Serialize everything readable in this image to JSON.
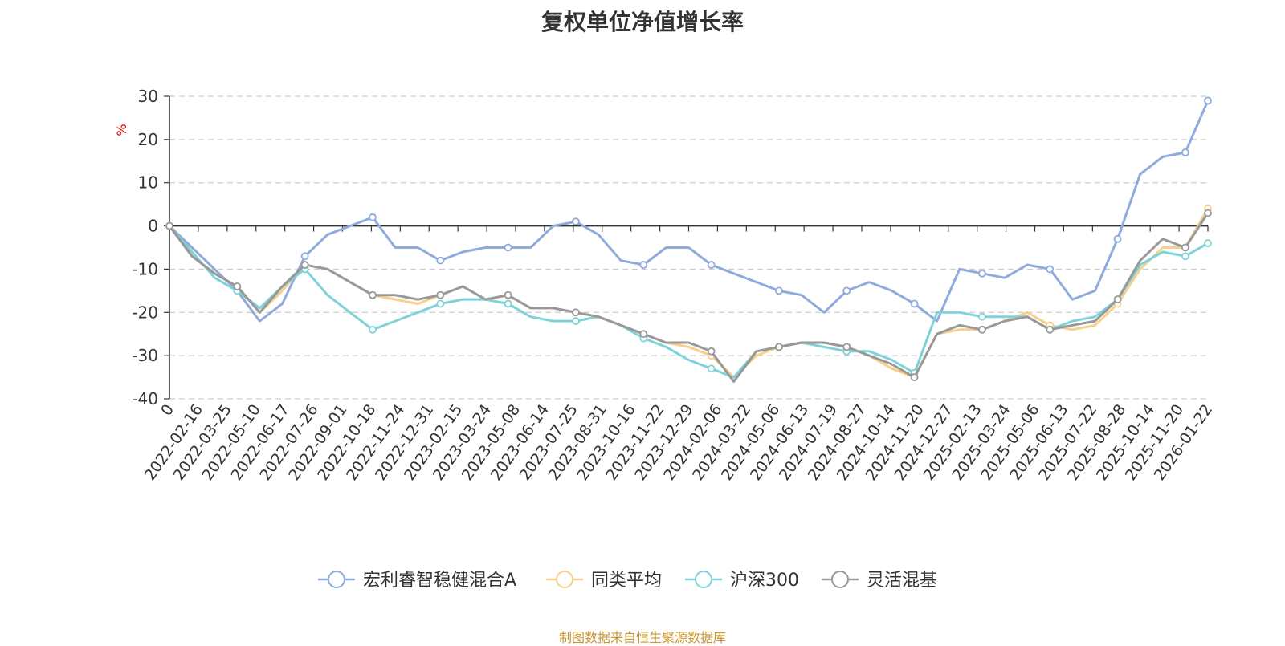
{
  "chart_data": {
    "type": "line",
    "title": "复权单位净值增长率",
    "ylabel": "%",
    "ylim": [
      -40,
      30
    ],
    "yticks": [
      30,
      20,
      10,
      0,
      -10,
      -20,
      -30,
      -40
    ],
    "grid": true,
    "legend_position": "bottom",
    "x_tick_labels": [
      "0",
      "2022-02-16",
      "2022-03-25",
      "2022-05-10",
      "2022-06-17",
      "2022-07-26",
      "2022-09-01",
      "2022-10-18",
      "2022-11-24",
      "2022-12-31",
      "2023-02-15",
      "2023-03-24",
      "2023-05-08",
      "2023-06-14",
      "2023-07-25",
      "2023-08-31",
      "2023-10-16",
      "2023-11-22",
      "2023-12-29",
      "2024-02-06",
      "2024-03-22",
      "2024-05-06",
      "2024-06-13",
      "2024-07-19",
      "2024-08-27",
      "2024-10-14",
      "2024-11-20",
      "2024-12-27",
      "2025-02-13",
      "2025-03-24",
      "2025-05-06",
      "2025-06-13",
      "2025-07-22",
      "2025-08-28",
      "2025-10-14",
      "2025-11-20",
      "2026-01-22"
    ],
    "series": [
      {
        "name": "宏利睿智稳健混合A",
        "color": "#8faadc",
        "values": [
          0,
          -5,
          -10,
          -15,
          -22,
          -18,
          -7,
          -2,
          0,
          2,
          -5,
          -5,
          -8,
          -6,
          -5,
          -5,
          -5,
          0,
          1,
          -2,
          -8,
          -9,
          -5,
          -5,
          -9,
          -11,
          -13,
          -15,
          -16,
          -20,
          -15,
          -13,
          -15,
          -18,
          -22,
          -10,
          -11,
          -12,
          -9,
          -10,
          -17,
          -15,
          -3,
          12,
          16,
          17,
          29
        ]
      },
      {
        "name": "同类平均",
        "color": "#f9d08b",
        "values": [
          0,
          -7,
          -11,
          -14,
          -20,
          -15,
          -9,
          -10,
          -13,
          -16,
          -17,
          -18,
          -16,
          -14,
          -17,
          -16,
          -19,
          -19,
          -20,
          -21,
          -23,
          -25,
          -27,
          -28,
          -30,
          -35,
          -30,
          -28,
          -27,
          -27,
          -28,
          -30,
          -33,
          -35,
          -25,
          -24,
          -24,
          -22,
          -20,
          -23,
          -24,
          -23,
          -18,
          -10,
          -5,
          -5,
          4
        ]
      },
      {
        "name": "沪深300",
        "color": "#7dd3d8",
        "values": [
          0,
          -6,
          -12,
          -15,
          -19,
          -14,
          -10,
          -16,
          -20,
          -24,
          -22,
          -20,
          -18,
          -17,
          -17,
          -18,
          -21,
          -22,
          -22,
          -21,
          -23,
          -26,
          -28,
          -31,
          -33,
          -35,
          -29,
          -28,
          -27,
          -28,
          -29,
          -29,
          -31,
          -34,
          -20,
          -20,
          -21,
          -21,
          -21,
          -24,
          -22,
          -21,
          -17,
          -9,
          -6,
          -7,
          -4
        ]
      },
      {
        "name": "灵活混基",
        "color": "#999999",
        "values": [
          0,
          -7,
          -11,
          -14,
          -20,
          -14,
          -9,
          -10,
          -13,
          -16,
          -16,
          -17,
          -16,
          -14,
          -17,
          -16,
          -19,
          -19,
          -20,
          -21,
          -23,
          -25,
          -27,
          -27,
          -29,
          -36,
          -29,
          -28,
          -27,
          -27,
          -28,
          -30,
          -32,
          -35,
          -25,
          -23,
          -24,
          -22,
          -21,
          -24,
          -23,
          -22,
          -17,
          -8,
          -3,
          -5,
          3
        ]
      }
    ],
    "source": "制图数据来自恒生聚源数据库"
  }
}
